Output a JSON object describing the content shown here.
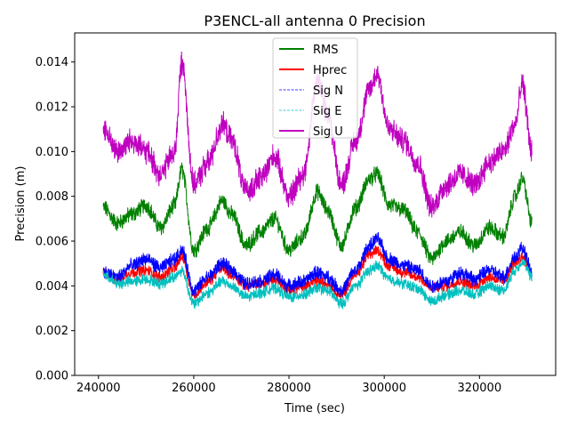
{
  "chart_data": {
    "type": "line",
    "title": "P3ENCL-all antenna 0 Precision",
    "xlabel": "Time (sec)",
    "ylabel": "Precision (m)",
    "xlim": [
      235000,
      336000
    ],
    "ylim": [
      0.0,
      0.0153
    ],
    "xticks": [
      240000,
      260000,
      280000,
      300000,
      320000
    ],
    "xtick_labels": [
      "240000",
      "260000",
      "280000",
      "300000",
      "320000"
    ],
    "yticks": [
      0.0,
      0.002,
      0.004,
      0.006,
      0.008,
      0.01,
      0.012,
      0.014
    ],
    "ytick_labels": [
      "0.000",
      "0.002",
      "0.004",
      "0.006",
      "0.008",
      "0.010",
      "0.012",
      "0.014"
    ],
    "legend_position": "upper-center",
    "x": [
      241000,
      244000,
      247000,
      250000,
      253000,
      256000,
      257500,
      260000,
      263000,
      266000,
      268000,
      271000,
      274000,
      277000,
      280000,
      283000,
      286000,
      288000,
      291000,
      294000,
      297000,
      298500,
      301000,
      304000,
      307000,
      310000,
      313000,
      316000,
      319000,
      322000,
      325000,
      327500,
      329000,
      331000
    ],
    "series": [
      {
        "name": "RMS",
        "color": "#008000",
        "style": "solid",
        "band": 0.0006,
        "values": [
          0.0075,
          0.0068,
          0.0072,
          0.0076,
          0.0066,
          0.0076,
          0.0092,
          0.0056,
          0.0066,
          0.0078,
          0.0072,
          0.0058,
          0.0064,
          0.007,
          0.0056,
          0.0062,
          0.0082,
          0.0074,
          0.0058,
          0.0075,
          0.0088,
          0.009,
          0.0076,
          0.0074,
          0.0064,
          0.0052,
          0.006,
          0.0064,
          0.0058,
          0.0066,
          0.0062,
          0.008,
          0.0088,
          0.0068
        ]
      },
      {
        "name": "Hprec",
        "color": "#ff0000",
        "style": "solid",
        "band": 0.0004,
        "values": [
          0.0046,
          0.0043,
          0.0046,
          0.0047,
          0.0044,
          0.0048,
          0.0053,
          0.0036,
          0.0042,
          0.0048,
          0.0045,
          0.004,
          0.0041,
          0.0043,
          0.0038,
          0.004,
          0.0042,
          0.0041,
          0.0036,
          0.0045,
          0.0054,
          0.0056,
          0.0049,
          0.0046,
          0.0044,
          0.0039,
          0.004,
          0.0042,
          0.004,
          0.0044,
          0.0042,
          0.005,
          0.0053,
          0.0045
        ]
      },
      {
        "name": "Sig N",
        "color": "#0000ff",
        "style": "dashed",
        "band": 0.0005,
        "values": [
          0.0046,
          0.0044,
          0.0049,
          0.0052,
          0.0048,
          0.0052,
          0.0056,
          0.0038,
          0.0044,
          0.005,
          0.0047,
          0.0041,
          0.0042,
          0.0045,
          0.004,
          0.0042,
          0.0046,
          0.0044,
          0.0038,
          0.0047,
          0.0058,
          0.0061,
          0.0052,
          0.0049,
          0.0047,
          0.004,
          0.0042,
          0.0046,
          0.0043,
          0.0047,
          0.0044,
          0.0053,
          0.0057,
          0.0046
        ]
      },
      {
        "name": "Sig E",
        "color": "#00bfbf",
        "style": "dashed",
        "band": 0.0004,
        "values": [
          0.0045,
          0.0041,
          0.0042,
          0.0043,
          0.0041,
          0.0044,
          0.0047,
          0.0032,
          0.0037,
          0.0042,
          0.004,
          0.0035,
          0.0037,
          0.0039,
          0.0035,
          0.0036,
          0.0039,
          0.0038,
          0.0032,
          0.004,
          0.0047,
          0.0049,
          0.0043,
          0.0041,
          0.0039,
          0.0033,
          0.0036,
          0.0038,
          0.0036,
          0.004,
          0.0038,
          0.0047,
          0.0051,
          0.0044
        ]
      },
      {
        "name": "Sig U",
        "color": "#bf00bf",
        "style": "solid",
        "band": 0.0009,
        "values": [
          0.011,
          0.01,
          0.0105,
          0.01,
          0.009,
          0.01,
          0.014,
          0.0085,
          0.0095,
          0.0112,
          0.0105,
          0.0082,
          0.0088,
          0.0098,
          0.008,
          0.009,
          0.0132,
          0.0118,
          0.0085,
          0.0105,
          0.0128,
          0.0135,
          0.011,
          0.0105,
          0.0095,
          0.0075,
          0.0085,
          0.009,
          0.0085,
          0.0095,
          0.01,
          0.0112,
          0.013,
          0.01
        ]
      }
    ]
  }
}
